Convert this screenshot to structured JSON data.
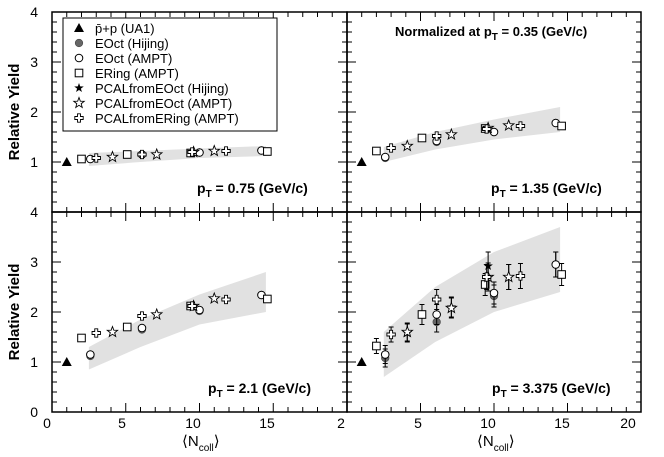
{
  "chart_data": {
    "type": "scatter",
    "y_axis_title": "Relative Yield",
    "x_axis_title_left": "⟨N",
    "x_axis_title_sub": "coll",
    "x_axis_title_right": "⟩",
    "x_ticks_left": [
      "0",
      "5",
      "10",
      "15",
      "2"
    ],
    "x_ticks_right": [
      "5",
      "10",
      "15",
      "20"
    ],
    "y_ticks_top": [
      "1",
      "2",
      "3",
      "4"
    ],
    "y_ticks_bottom": [
      "0",
      "1",
      "2",
      "3",
      "4"
    ],
    "xlim": [
      0,
      20
    ],
    "ylim": [
      0,
      4
    ],
    "normalization_note": "Normalized at p",
    "normalization_sub": "T",
    "normalization_value": " = 0.35 (GeV/c)",
    "legend": [
      {
        "label": "p̄+p (UA1)",
        "marker": "triangle"
      },
      {
        "label": "EOct (Hijing)",
        "marker": "circle-filled"
      },
      {
        "label": "EOct (AMPT)",
        "marker": "circle-open"
      },
      {
        "label": "ERing (AMPT)",
        "marker": "square-open"
      },
      {
        "label": "PCALfromEOct (Hijing)",
        "marker": "star-filled"
      },
      {
        "label": "PCALfromEOct (AMPT)",
        "marker": "star-open"
      },
      {
        "label": "PCALfromERing (AMPT)",
        "marker": "cross-open"
      }
    ],
    "panels": [
      {
        "id": "top-left",
        "pt_label": "p",
        "pt_sub": "T",
        "pt_value": " = 0.75 (GeV/c)",
        "band": {
          "x": [
            2.5,
            6,
            10,
            14.5
          ],
          "lo": [
            0.92,
            1.0,
            1.08,
            1.12
          ],
          "hi": [
            1.18,
            1.22,
            1.27,
            1.32
          ]
        },
        "series": {
          "ua1": [
            {
              "x": 1.0,
              "y": 1.0
            }
          ],
          "eoct_hijing": [
            {
              "x": 2.6,
              "y": 1.06
            },
            {
              "x": 6.1,
              "y": 1.15
            },
            {
              "x": 10.0,
              "y": 1.19
            },
            {
              "x": 14.2,
              "y": 1.23
            }
          ],
          "eoct_ampt": [
            {
              "x": 2.6,
              "y": 1.06
            },
            {
              "x": 6.1,
              "y": 1.15
            },
            {
              "x": 10.0,
              "y": 1.19
            },
            {
              "x": 14.2,
              "y": 1.23
            }
          ],
          "ering_ampt": [
            {
              "x": 2.0,
              "y": 1.06
            },
            {
              "x": 5.1,
              "y": 1.15
            },
            {
              "x": 9.4,
              "y": 1.18
            },
            {
              "x": 14.6,
              "y": 1.21
            }
          ],
          "pcal_hijing": [
            {
              "x": 4.1,
              "y": 1.1
            },
            {
              "x": 7.1,
              "y": 1.15
            },
            {
              "x": 9.6,
              "y": 1.2
            },
            {
              "x": 11.0,
              "y": 1.22
            }
          ],
          "pcal_eoct_ampt": [
            {
              "x": 4.1,
              "y": 1.1
            },
            {
              "x": 7.1,
              "y": 1.15
            },
            {
              "x": 9.6,
              "y": 1.2
            },
            {
              "x": 11.0,
              "y": 1.22
            }
          ],
          "pcal_ering_ampt": [
            {
              "x": 3.0,
              "y": 1.08
            },
            {
              "x": 6.1,
              "y": 1.15
            },
            {
              "x": 9.5,
              "y": 1.2
            },
            {
              "x": 11.8,
              "y": 1.22
            }
          ]
        }
      },
      {
        "id": "top-right",
        "pt_label": "p",
        "pt_sub": "T",
        "pt_value": " = 1.35 (GeV/c)",
        "band": {
          "x": [
            2.5,
            6,
            10,
            14.5
          ],
          "lo": [
            1.0,
            1.25,
            1.45,
            1.6
          ],
          "hi": [
            1.3,
            1.6,
            1.85,
            2.1
          ]
        },
        "series": {
          "ua1": [
            {
              "x": 1.0,
              "y": 1.0
            }
          ],
          "eoct_hijing": [
            {
              "x": 2.6,
              "y": 1.08
            },
            {
              "x": 6.1,
              "y": 1.4
            },
            {
              "x": 10.0,
              "y": 1.6
            },
            {
              "x": 14.2,
              "y": 1.78
            }
          ],
          "eoct_ampt": [
            {
              "x": 2.6,
              "y": 1.1
            },
            {
              "x": 6.1,
              "y": 1.42
            },
            {
              "x": 10.0,
              "y": 1.6
            },
            {
              "x": 14.2,
              "y": 1.78
            }
          ],
          "ering_ampt": [
            {
              "x": 2.0,
              "y": 1.22
            },
            {
              "x": 5.1,
              "y": 1.48
            },
            {
              "x": 9.4,
              "y": 1.67
            },
            {
              "x": 14.6,
              "y": 1.72
            }
          ],
          "pcal_hijing": [
            {
              "x": 4.1,
              "y": 1.32
            },
            {
              "x": 7.1,
              "y": 1.55
            },
            {
              "x": 9.6,
              "y": 1.68
            },
            {
              "x": 11.0,
              "y": 1.73
            }
          ],
          "pcal_eoct_ampt": [
            {
              "x": 4.1,
              "y": 1.32
            },
            {
              "x": 7.1,
              "y": 1.55
            },
            {
              "x": 9.6,
              "y": 1.68
            },
            {
              "x": 11.0,
              "y": 1.73
            }
          ],
          "pcal_ering_ampt": [
            {
              "x": 3.0,
              "y": 1.28
            },
            {
              "x": 6.1,
              "y": 1.52
            },
            {
              "x": 9.5,
              "y": 1.66
            },
            {
              "x": 11.8,
              "y": 1.72
            }
          ]
        }
      },
      {
        "id": "bottom-left",
        "pt_label": "p",
        "pt_sub": "T",
        "pt_value": " = 2.1 (GeV/c)",
        "band": {
          "x": [
            2.5,
            6,
            10,
            14.5
          ],
          "lo": [
            0.85,
            1.3,
            1.75,
            2.0
          ],
          "hi": [
            1.3,
            1.85,
            2.35,
            2.8
          ]
        },
        "series": {
          "ua1": [
            {
              "x": 1.0,
              "y": 1.0
            }
          ],
          "eoct_hijing": [
            {
              "x": 2.6,
              "y": 1.12
            },
            {
              "x": 6.1,
              "y": 1.65
            },
            {
              "x": 10.0,
              "y": 2.02
            },
            {
              "x": 14.2,
              "y": 2.34
            }
          ],
          "eoct_ampt": [
            {
              "x": 2.6,
              "y": 1.15
            },
            {
              "x": 6.1,
              "y": 1.68
            },
            {
              "x": 10.0,
              "y": 2.04
            },
            {
              "x": 14.2,
              "y": 2.34
            }
          ],
          "ering_ampt": [
            {
              "x": 2.0,
              "y": 1.48
            },
            {
              "x": 5.1,
              "y": 1.7
            },
            {
              "x": 9.4,
              "y": 2.12
            },
            {
              "x": 14.6,
              "y": 2.26
            }
          ],
          "pcal_hijing": [
            {
              "x": 4.1,
              "y": 1.6
            },
            {
              "x": 7.1,
              "y": 1.95
            },
            {
              "x": 9.6,
              "y": 2.12
            },
            {
              "x": 11.0,
              "y": 2.27
            }
          ],
          "pcal_eoct_ampt": [
            {
              "x": 4.1,
              "y": 1.6
            },
            {
              "x": 7.1,
              "y": 1.95
            },
            {
              "x": 9.6,
              "y": 2.12
            },
            {
              "x": 11.0,
              "y": 2.27
            }
          ],
          "pcal_ering_ampt": [
            {
              "x": 3.0,
              "y": 1.58
            },
            {
              "x": 6.1,
              "y": 1.92
            },
            {
              "x": 9.5,
              "y": 2.12
            },
            {
              "x": 11.8,
              "y": 2.25
            }
          ]
        }
      },
      {
        "id": "bottom-right",
        "pt_label": "p",
        "pt_sub": "T",
        "pt_value": " = 3.375 (GeV/c)",
        "band": {
          "x": [
            2.5,
            6,
            10,
            14.5
          ],
          "lo": [
            0.7,
            1.4,
            2.0,
            2.4
          ],
          "hi": [
            1.6,
            2.5,
            3.2,
            3.7
          ]
        },
        "series": {
          "ua1": [
            {
              "x": 1.0,
              "y": 1.0
            }
          ],
          "eoct_hijing": [
            {
              "x": 2.6,
              "y": 1.08,
              "err": 0.18
            },
            {
              "x": 6.1,
              "y": 1.8,
              "err": 0.2
            },
            {
              "x": 10.0,
              "y": 2.32,
              "err": 0.22
            },
            {
              "x": 14.2,
              "y": 2.95,
              "err": 0.25
            }
          ],
          "eoct_ampt": [
            {
              "x": 2.6,
              "y": 1.15,
              "err": 0.18
            },
            {
              "x": 6.1,
              "y": 1.95,
              "err": 0.2
            },
            {
              "x": 10.0,
              "y": 2.38,
              "err": 0.22
            },
            {
              "x": 14.2,
              "y": 2.95,
              "err": 0.25
            }
          ],
          "ering_ampt": [
            {
              "x": 2.0,
              "y": 1.32,
              "err": 0.15
            },
            {
              "x": 5.1,
              "y": 1.95,
              "err": 0.2
            },
            {
              "x": 9.4,
              "y": 2.55,
              "err": 0.22
            },
            {
              "x": 14.6,
              "y": 2.75,
              "err": 0.22
            }
          ],
          "pcal_hijing": [
            {
              "x": 4.1,
              "y": 1.58,
              "err": 0.18
            },
            {
              "x": 7.1,
              "y": 2.1,
              "err": 0.2
            },
            {
              "x": 9.6,
              "y": 2.92,
              "err": 0.28
            },
            {
              "x": 11.0,
              "y": 2.7,
              "err": 0.25
            }
          ],
          "pcal_eoct_ampt": [
            {
              "x": 4.1,
              "y": 1.6,
              "err": 0.18
            },
            {
              "x": 7.1,
              "y": 2.08,
              "err": 0.2
            },
            {
              "x": 9.6,
              "y": 2.7,
              "err": 0.28
            },
            {
              "x": 11.0,
              "y": 2.7,
              "err": 0.25
            }
          ],
          "pcal_ering_ampt": [
            {
              "x": 3.0,
              "y": 1.55,
              "err": 0.15
            },
            {
              "x": 6.1,
              "y": 2.25,
              "err": 0.2
            },
            {
              "x": 9.5,
              "y": 2.7,
              "err": 0.25
            },
            {
              "x": 11.8,
              "y": 2.72,
              "err": 0.25
            }
          ]
        }
      }
    ]
  }
}
